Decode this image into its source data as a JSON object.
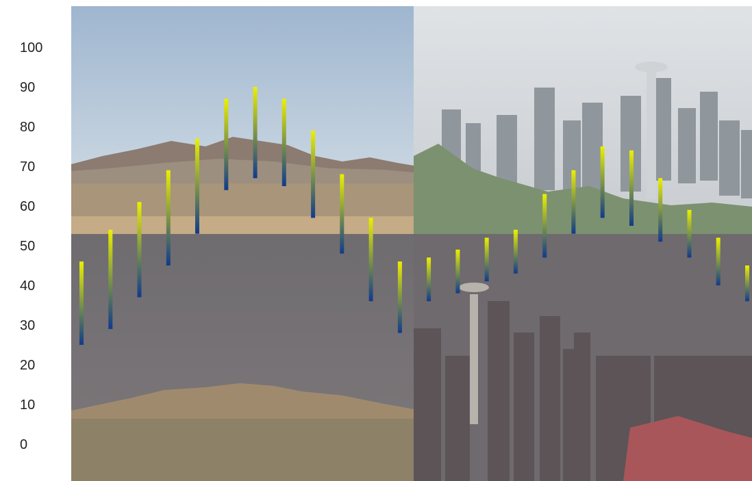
{
  "chart_data": {
    "type": "bar",
    "subtype": "floating-range",
    "background": "2x2 photo collage (daytime desert mountains, daytime city skyline with tower, night mountains under stars, night city skyline with tower)",
    "ylim": [
      0,
      100
    ],
    "yticks": [
      "0",
      "10",
      "20",
      "30",
      "40",
      "50",
      "60",
      "70",
      "80",
      "90",
      "100"
    ],
    "grid": false,
    "legend": "none",
    "bar_gradient": {
      "top": "#ecf000",
      "bottom": "#103a8c"
    },
    "series": [
      {
        "lows": [
          25,
          29,
          37,
          45,
          53,
          64,
          67,
          65,
          57,
          48,
          36,
          28,
          36,
          38,
          41,
          43,
          47,
          53,
          57,
          55,
          51,
          47,
          40,
          36
        ],
        "highs": [
          46,
          54,
          61,
          69,
          77,
          87,
          90,
          87,
          79,
          68,
          57,
          46,
          47,
          49,
          52,
          54,
          63,
          69,
          75,
          74,
          67,
          59,
          52,
          45
        ]
      }
    ]
  }
}
